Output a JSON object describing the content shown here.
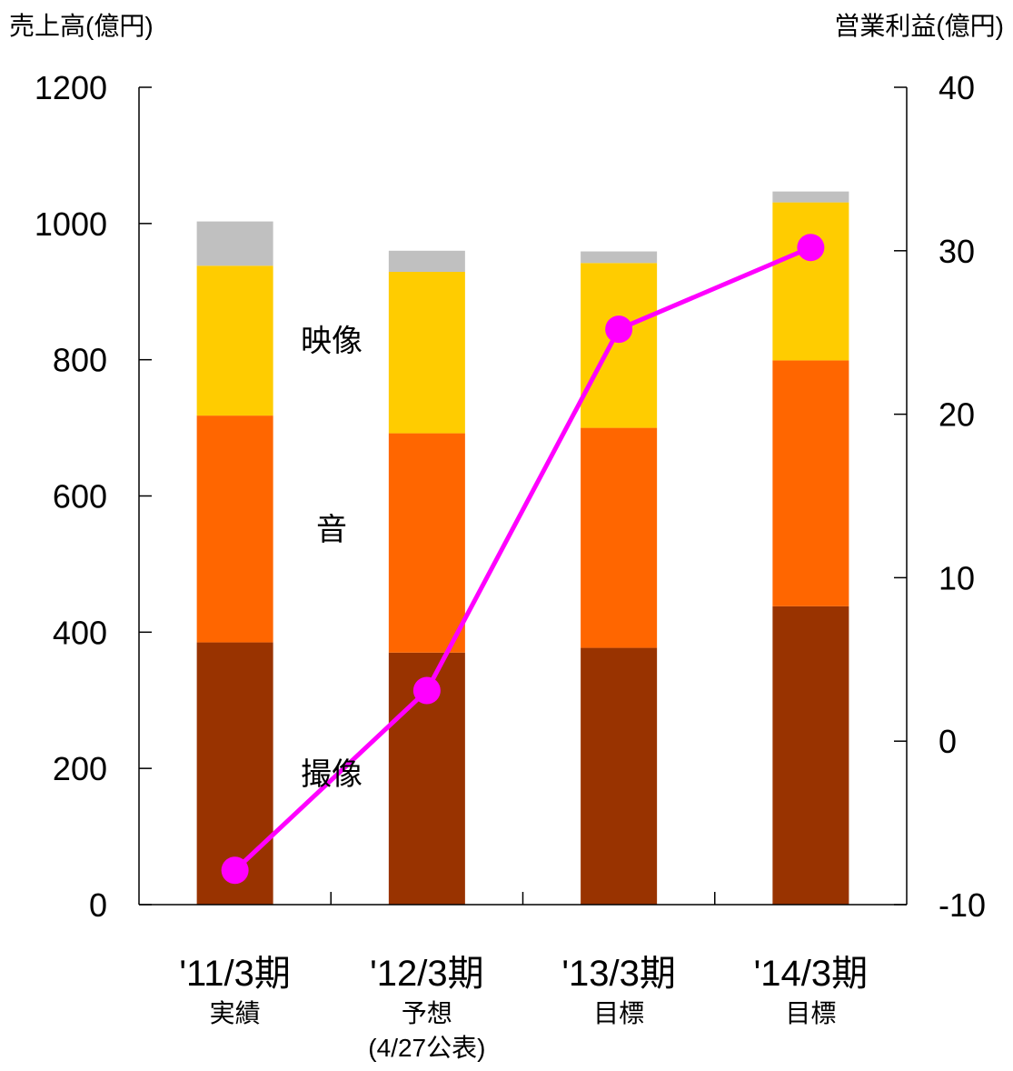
{
  "chart_data": {
    "type": "bar",
    "stacked": true,
    "y_left": {
      "label": "売上高(億円)",
      "lim": [
        0,
        1200
      ],
      "ticks": [
        "0",
        "200",
        "400",
        "600",
        "800",
        "1000",
        "1200"
      ]
    },
    "y_right": {
      "label": "営業利益(億円)",
      "lim": [
        -10,
        40
      ],
      "ticks": [
        "-10",
        "0",
        "10",
        "20",
        "30",
        "40"
      ]
    },
    "categories": [
      {
        "main": "'11/3期",
        "sub": [
          "実績"
        ]
      },
      {
        "main": "'12/3期",
        "sub": [
          "予想",
          "(4/27公表)"
        ]
      },
      {
        "main": "'13/3期",
        "sub": [
          "目標"
        ]
      },
      {
        "main": "'14/3期",
        "sub": [
          "目標"
        ]
      }
    ],
    "series": [
      {
        "name": "撮像",
        "color": "#993300",
        "values": [
          385,
          370,
          377,
          438
        ]
      },
      {
        "name": "音",
        "color": "#ff6600",
        "values": [
          333,
          322,
          323,
          361
        ]
      },
      {
        "name": "映像",
        "color": "#ffcc00",
        "values": [
          220,
          237,
          242,
          232
        ]
      },
      {
        "color": "#c0c0c0",
        "values": [
          65,
          31,
          17,
          16
        ]
      }
    ],
    "line": {
      "color": "#ff00ff",
      "axis": "right",
      "values": [
        -7.9,
        3.1,
        25.2,
        30.2
      ]
    },
    "segment_labels": [
      "撮像",
      "音",
      "映像"
    ],
    "grid": false
  }
}
